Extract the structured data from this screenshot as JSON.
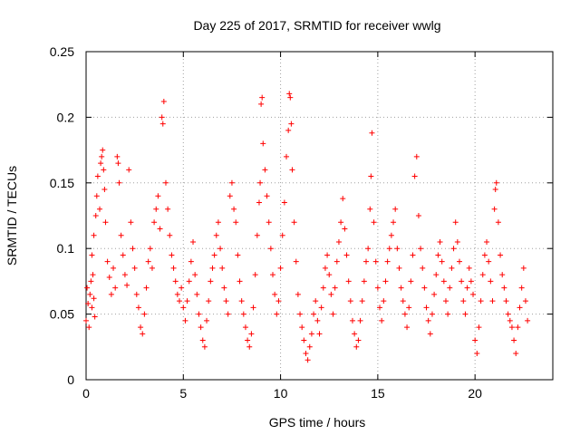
{
  "chart_data": {
    "type": "scatter",
    "title": "Day 225 of 2017, SRMTID for receiver wwlg",
    "xlabel": "GPS time / hours",
    "ylabel": "SRMTID / TECUs",
    "xlim": [
      0,
      24
    ],
    "ylim": [
      0,
      0.25
    ],
    "xticks": [
      "0",
      "5",
      "10",
      "15",
      "20"
    ],
    "yticks": [
      "0",
      "0.05",
      "0.1",
      "0.15",
      "0.2",
      "0.25"
    ],
    "grid": true,
    "marker": "+",
    "color": "#ff0000",
    "series": [
      {
        "name": "SRMTID",
        "points": [
          [
            0.0,
            0.045
          ],
          [
            0.05,
            0.07
          ],
          [
            0.1,
            0.058
          ],
          [
            0.15,
            0.04
          ],
          [
            0.2,
            0.065
          ],
          [
            0.25,
            0.075
          ],
          [
            0.3,
            0.055
          ],
          [
            0.35,
            0.08
          ],
          [
            0.4,
            0.062
          ],
          [
            0.45,
            0.048
          ],
          [
            0.3,
            0.095
          ],
          [
            0.4,
            0.11
          ],
          [
            0.5,
            0.125
          ],
          [
            0.55,
            0.14
          ],
          [
            0.6,
            0.155
          ],
          [
            0.7,
            0.13
          ],
          [
            0.75,
            0.165
          ],
          [
            0.8,
            0.17
          ],
          [
            0.85,
            0.175
          ],
          [
            0.9,
            0.16
          ],
          [
            0.95,
            0.145
          ],
          [
            1.0,
            0.12
          ],
          [
            1.1,
            0.09
          ],
          [
            1.2,
            0.078
          ],
          [
            1.3,
            0.065
          ],
          [
            1.4,
            0.085
          ],
          [
            1.5,
            0.07
          ],
          [
            1.6,
            0.17
          ],
          [
            1.65,
            0.165
          ],
          [
            1.7,
            0.15
          ],
          [
            1.8,
            0.11
          ],
          [
            1.9,
            0.095
          ],
          [
            2.0,
            0.08
          ],
          [
            2.1,
            0.072
          ],
          [
            2.2,
            0.16
          ],
          [
            2.3,
            0.12
          ],
          [
            2.4,
            0.1
          ],
          [
            2.5,
            0.085
          ],
          [
            2.6,
            0.065
          ],
          [
            2.7,
            0.055
          ],
          [
            2.8,
            0.04
          ],
          [
            2.9,
            0.035
          ],
          [
            3.0,
            0.05
          ],
          [
            3.1,
            0.07
          ],
          [
            3.2,
            0.09
          ],
          [
            3.3,
            0.1
          ],
          [
            3.4,
            0.085
          ],
          [
            3.5,
            0.12
          ],
          [
            3.6,
            0.13
          ],
          [
            3.7,
            0.14
          ],
          [
            3.8,
            0.115
          ],
          [
            3.9,
            0.2
          ],
          [
            3.95,
            0.195
          ],
          [
            4.0,
            0.212
          ],
          [
            4.1,
            0.15
          ],
          [
            4.2,
            0.13
          ],
          [
            4.3,
            0.11
          ],
          [
            4.4,
            0.095
          ],
          [
            4.5,
            0.085
          ],
          [
            4.6,
            0.075
          ],
          [
            4.7,
            0.065
          ],
          [
            4.8,
            0.06
          ],
          [
            4.9,
            0.07
          ],
          [
            5.0,
            0.055
          ],
          [
            5.1,
            0.045
          ],
          [
            5.2,
            0.06
          ],
          [
            5.3,
            0.075
          ],
          [
            5.4,
            0.09
          ],
          [
            5.5,
            0.105
          ],
          [
            5.6,
            0.08
          ],
          [
            5.7,
            0.065
          ],
          [
            5.8,
            0.05
          ],
          [
            5.9,
            0.04
          ],
          [
            6.0,
            0.03
          ],
          [
            6.1,
            0.025
          ],
          [
            6.2,
            0.045
          ],
          [
            6.3,
            0.06
          ],
          [
            6.4,
            0.075
          ],
          [
            6.5,
            0.085
          ],
          [
            6.6,
            0.095
          ],
          [
            6.7,
            0.11
          ],
          [
            6.8,
            0.12
          ],
          [
            6.9,
            0.1
          ],
          [
            7.0,
            0.085
          ],
          [
            7.1,
            0.07
          ],
          [
            7.2,
            0.06
          ],
          [
            7.3,
            0.05
          ],
          [
            7.4,
            0.14
          ],
          [
            7.5,
            0.15
          ],
          [
            7.6,
            0.13
          ],
          [
            7.7,
            0.12
          ],
          [
            7.8,
            0.095
          ],
          [
            7.9,
            0.075
          ],
          [
            8.0,
            0.06
          ],
          [
            8.1,
            0.05
          ],
          [
            8.2,
            0.04
          ],
          [
            8.3,
            0.03
          ],
          [
            8.4,
            0.025
          ],
          [
            8.5,
            0.035
          ],
          [
            8.6,
            0.055
          ],
          [
            8.7,
            0.08
          ],
          [
            8.8,
            0.11
          ],
          [
            8.9,
            0.135
          ],
          [
            8.95,
            0.15
          ],
          [
            9.0,
            0.21
          ],
          [
            9.05,
            0.215
          ],
          [
            9.1,
            0.18
          ],
          [
            9.2,
            0.16
          ],
          [
            9.3,
            0.14
          ],
          [
            9.4,
            0.12
          ],
          [
            9.5,
            0.1
          ],
          [
            9.6,
            0.08
          ],
          [
            9.7,
            0.065
          ],
          [
            9.8,
            0.05
          ],
          [
            9.9,
            0.06
          ],
          [
            10.0,
            0.085
          ],
          [
            10.1,
            0.11
          ],
          [
            10.2,
            0.135
          ],
          [
            10.3,
            0.17
          ],
          [
            10.4,
            0.19
          ],
          [
            10.45,
            0.218
          ],
          [
            10.5,
            0.215
          ],
          [
            10.55,
            0.195
          ],
          [
            10.6,
            0.16
          ],
          [
            10.7,
            0.12
          ],
          [
            10.8,
            0.09
          ],
          [
            10.9,
            0.065
          ],
          [
            11.0,
            0.05
          ],
          [
            11.1,
            0.04
          ],
          [
            11.2,
            0.03
          ],
          [
            11.3,
            0.02
          ],
          [
            11.4,
            0.015
          ],
          [
            11.5,
            0.025
          ],
          [
            11.6,
            0.035
          ],
          [
            11.7,
            0.05
          ],
          [
            11.8,
            0.06
          ],
          [
            11.9,
            0.045
          ],
          [
            12.0,
            0.035
          ],
          [
            12.1,
            0.055
          ],
          [
            12.2,
            0.07
          ],
          [
            12.3,
            0.085
          ],
          [
            12.4,
            0.095
          ],
          [
            12.5,
            0.08
          ],
          [
            12.6,
            0.065
          ],
          [
            12.7,
            0.05
          ],
          [
            12.8,
            0.07
          ],
          [
            12.9,
            0.09
          ],
          [
            13.0,
            0.105
          ],
          [
            13.1,
            0.12
          ],
          [
            13.2,
            0.138
          ],
          [
            13.3,
            0.115
          ],
          [
            13.4,
            0.095
          ],
          [
            13.5,
            0.075
          ],
          [
            13.6,
            0.06
          ],
          [
            13.7,
            0.045
          ],
          [
            13.8,
            0.035
          ],
          [
            13.9,
            0.025
          ],
          [
            14.0,
            0.03
          ],
          [
            14.1,
            0.045
          ],
          [
            14.2,
            0.06
          ],
          [
            14.3,
            0.075
          ],
          [
            14.4,
            0.09
          ],
          [
            14.5,
            0.1
          ],
          [
            14.6,
            0.13
          ],
          [
            14.65,
            0.155
          ],
          [
            14.7,
            0.188
          ],
          [
            14.8,
            0.12
          ],
          [
            14.9,
            0.09
          ],
          [
            15.0,
            0.07
          ],
          [
            15.1,
            0.055
          ],
          [
            15.2,
            0.045
          ],
          [
            15.3,
            0.06
          ],
          [
            15.4,
            0.075
          ],
          [
            15.5,
            0.09
          ],
          [
            15.6,
            0.1
          ],
          [
            15.7,
            0.11
          ],
          [
            15.8,
            0.12
          ],
          [
            15.9,
            0.13
          ],
          [
            16.0,
            0.1
          ],
          [
            16.1,
            0.085
          ],
          [
            16.2,
            0.07
          ],
          [
            16.3,
            0.06
          ],
          [
            16.4,
            0.05
          ],
          [
            16.5,
            0.04
          ],
          [
            16.6,
            0.055
          ],
          [
            16.7,
            0.075
          ],
          [
            16.8,
            0.095
          ],
          [
            16.9,
            0.155
          ],
          [
            17.0,
            0.17
          ],
          [
            17.1,
            0.125
          ],
          [
            17.2,
            0.1
          ],
          [
            17.3,
            0.085
          ],
          [
            17.4,
            0.07
          ],
          [
            17.5,
            0.055
          ],
          [
            17.6,
            0.045
          ],
          [
            17.7,
            0.035
          ],
          [
            17.8,
            0.05
          ],
          [
            17.9,
            0.065
          ],
          [
            18.0,
            0.08
          ],
          [
            18.1,
            0.095
          ],
          [
            18.2,
            0.105
          ],
          [
            18.3,
            0.09
          ],
          [
            18.4,
            0.075
          ],
          [
            18.5,
            0.06
          ],
          [
            18.6,
            0.05
          ],
          [
            18.7,
            0.07
          ],
          [
            18.8,
            0.085
          ],
          [
            18.9,
            0.1
          ],
          [
            19.0,
            0.12
          ],
          [
            19.1,
            0.105
          ],
          [
            19.2,
            0.09
          ],
          [
            19.3,
            0.075
          ],
          [
            19.4,
            0.06
          ],
          [
            19.5,
            0.05
          ],
          [
            19.6,
            0.07
          ],
          [
            19.7,
            0.085
          ],
          [
            19.8,
            0.075
          ],
          [
            19.9,
            0.065
          ],
          [
            20.0,
            0.03
          ],
          [
            20.1,
            0.02
          ],
          [
            20.2,
            0.04
          ],
          [
            20.3,
            0.06
          ],
          [
            20.4,
            0.08
          ],
          [
            20.5,
            0.095
          ],
          [
            20.6,
            0.105
          ],
          [
            20.7,
            0.09
          ],
          [
            20.8,
            0.075
          ],
          [
            20.9,
            0.06
          ],
          [
            21.0,
            0.13
          ],
          [
            21.05,
            0.145
          ],
          [
            21.1,
            0.15
          ],
          [
            21.2,
            0.12
          ],
          [
            21.3,
            0.095
          ],
          [
            21.4,
            0.08
          ],
          [
            21.5,
            0.07
          ],
          [
            21.6,
            0.06
          ],
          [
            21.7,
            0.05
          ],
          [
            21.8,
            0.045
          ],
          [
            21.9,
            0.04
          ],
          [
            22.0,
            0.03
          ],
          [
            22.1,
            0.02
          ],
          [
            22.2,
            0.04
          ],
          [
            22.3,
            0.055
          ],
          [
            22.4,
            0.07
          ],
          [
            22.5,
            0.085
          ],
          [
            22.6,
            0.06
          ],
          [
            22.7,
            0.045
          ]
        ]
      }
    ]
  }
}
